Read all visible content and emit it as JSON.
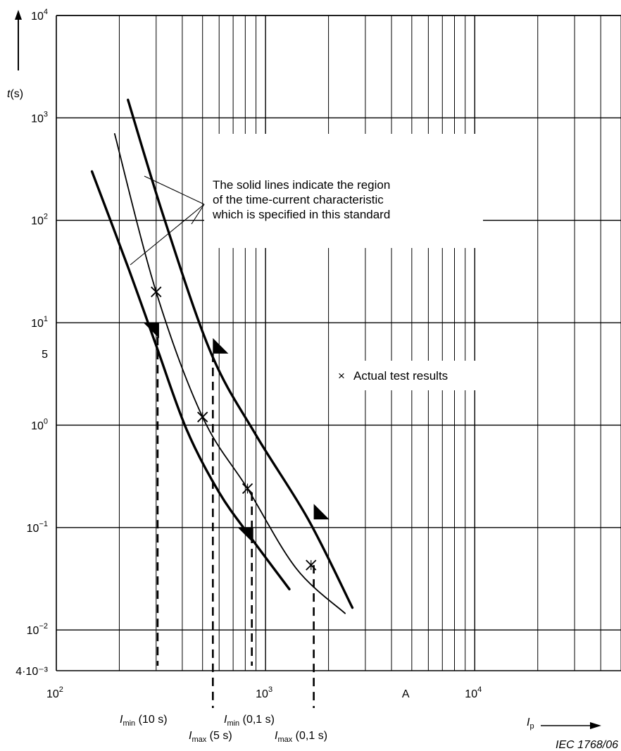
{
  "chart_data": {
    "type": "line",
    "xscale": "log",
    "yscale": "log",
    "xlim": [
      100,
      50000
    ],
    "ylim": [
      0.004,
      10000
    ],
    "x_tick_labels": [
      {
        "x": 100,
        "base": "10",
        "exp": "2"
      },
      {
        "x": 1000,
        "base": "10",
        "exp": "3"
      },
      {
        "x": 10000,
        "base": "10",
        "exp": "4"
      }
    ],
    "x_unit_label": "A",
    "x_unit_at": 5000,
    "xlabel": {
      "symbol": "I",
      "subscript": "p"
    },
    "y_tick_labels": [
      {
        "y": 10000,
        "base": "10",
        "exp": "4"
      },
      {
        "y": 1000,
        "base": "10",
        "exp": "3"
      },
      {
        "y": 100,
        "base": "10",
        "exp": "2"
      },
      {
        "y": 10,
        "base": "10",
        "exp": "1"
      },
      {
        "y": 5,
        "text": "5"
      },
      {
        "y": 1,
        "base": "10",
        "exp": "0"
      },
      {
        "y": 0.1,
        "base": "10",
        "exp": "−1"
      },
      {
        "y": 0.01,
        "base": "10",
        "exp": "−2"
      },
      {
        "y": 0.004,
        "text": "4·10⁻³"
      }
    ],
    "ylabel": {
      "symbol": "t",
      "unit": "(s)"
    },
    "grid": true,
    "series": [
      {
        "role": "lower-bound",
        "style": "thick",
        "x": [
          148,
          220,
          300,
          420,
          600,
          850,
          1300
        ],
        "y": [
          300,
          35,
          6,
          0.9,
          0.22,
          0.08,
          0.025
        ]
      },
      {
        "role": "test-curve",
        "style": "thin",
        "x": [
          190,
          300,
          500,
          820,
          1400,
          2400
        ],
        "y": [
          700,
          20,
          1.2,
          0.24,
          0.04,
          0.0145
        ]
      },
      {
        "role": "upper-bound",
        "style": "thick",
        "x": [
          220,
          330,
          550,
          900,
          1600,
          2600
        ],
        "y": [
          1500,
          100,
          5,
          0.8,
          0.12,
          0.0165
        ]
      }
    ],
    "test_points": [
      {
        "x": 300,
        "y": 20
      },
      {
        "x": 500,
        "y": 1.2
      },
      {
        "x": 820,
        "y": 0.24
      },
      {
        "x": 1650,
        "y": 0.043
      }
    ],
    "limit_markers": [
      {
        "x": 305,
        "y": 10,
        "dir": "left",
        "drop_from": 10,
        "label": "I_min (10 s)"
      },
      {
        "x": 560,
        "y": 5,
        "dir": "right",
        "drop_from": 5,
        "label": "I_max (5 s)"
      },
      {
        "x": 860,
        "y": 0.1,
        "dir": "left",
        "drop_from": 0.22,
        "label": "I_min (0,1 s)"
      },
      {
        "x": 1700,
        "y": 0.12,
        "dir": "right",
        "drop_from": 0.043,
        "label": "I_max (0,1 s)"
      }
    ],
    "marker_labels": [
      {
        "sym": "I",
        "sub": "min",
        "rest": "(10 s)"
      },
      {
        "sym": "I",
        "sub": "max",
        "rest": "(5 s)"
      },
      {
        "sym": "I",
        "sub": "min",
        "rest": "(0,1 s)"
      },
      {
        "sym": "I",
        "sub": "max",
        "rest": "(0,1 s)"
      }
    ],
    "annotation_box": {
      "lines": [
        "The solid lines indicate the region",
        "of the time-current characteristic",
        "which is specified in this standard"
      ]
    },
    "legend": {
      "symbol": "×",
      "text": "Actual test results"
    },
    "credit": "IEC   1768/06"
  }
}
